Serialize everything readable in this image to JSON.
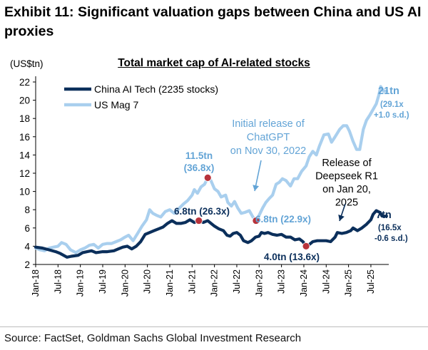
{
  "header": {
    "title": "Exhibit 11: Significant valuation gaps between China and US AI proxies"
  },
  "footer": {
    "source": "Source: FactSet, Goldman Sachs Global Investment Research"
  },
  "colors": {
    "china": "#0b2f5b",
    "us": "#a9cfee",
    "marker": "#b8333b",
    "annotation_blue": "#63a4d6"
  },
  "chart_data": {
    "type": "line",
    "title": "Total market cap of AI-related stocks",
    "unit_label": "(US$tn)",
    "ylim": [
      2,
      22
    ],
    "y_ticks": [
      2,
      4,
      6,
      8,
      10,
      12,
      14,
      16,
      18,
      20,
      22
    ],
    "x_ticks": [
      "Jan-18",
      "Jul-18",
      "Jan-19",
      "Jul-19",
      "Jan-20",
      "Jul-20",
      "Jan-21",
      "Jul-21",
      "Jan-22",
      "Jul-22",
      "Jan-23",
      "Jul-23",
      "Jan-24",
      "Jul-24",
      "Jan-25",
      "Jul-25"
    ],
    "xlim": [
      2018.0,
      2025.9
    ],
    "legend": {
      "position": "top-left",
      "entries": [
        "China AI Tech (2235 stocks)",
        "US Mag 7"
      ]
    },
    "series": [
      {
        "name": "China AI Tech (2235 stocks)",
        "points": [
          [
            2018.0,
            3.9
          ],
          [
            2018.15,
            3.8
          ],
          [
            2018.3,
            3.6
          ],
          [
            2018.45,
            3.4
          ],
          [
            2018.55,
            3.2
          ],
          [
            2018.7,
            2.8
          ],
          [
            2018.8,
            2.9
          ],
          [
            2018.95,
            3.0
          ],
          [
            2019.05,
            3.3
          ],
          [
            2019.15,
            3.4
          ],
          [
            2019.25,
            3.5
          ],
          [
            2019.35,
            3.3
          ],
          [
            2019.5,
            3.4
          ],
          [
            2019.6,
            3.4
          ],
          [
            2019.75,
            3.5
          ],
          [
            2019.85,
            3.7
          ],
          [
            2019.95,
            3.9
          ],
          [
            2020.05,
            4.0
          ],
          [
            2020.15,
            3.7
          ],
          [
            2020.25,
            4.0
          ],
          [
            2020.35,
            4.5
          ],
          [
            2020.45,
            5.3
          ],
          [
            2020.55,
            5.5
          ],
          [
            2020.65,
            5.7
          ],
          [
            2020.75,
            5.9
          ],
          [
            2020.85,
            6.1
          ],
          [
            2020.95,
            6.5
          ],
          [
            2021.05,
            6.8
          ],
          [
            2021.15,
            6.5
          ],
          [
            2021.25,
            6.5
          ],
          [
            2021.35,
            6.6
          ],
          [
            2021.45,
            6.9
          ],
          [
            2021.55,
            6.6
          ],
          [
            2021.65,
            6.8
          ],
          [
            2021.75,
            6.6
          ],
          [
            2021.85,
            6.8
          ],
          [
            2022.0,
            6.2
          ],
          [
            2022.1,
            5.9
          ],
          [
            2022.2,
            5.7
          ],
          [
            2022.28,
            5.2
          ],
          [
            2022.35,
            5.1
          ],
          [
            2022.42,
            5.4
          ],
          [
            2022.5,
            5.5
          ],
          [
            2022.58,
            5.2
          ],
          [
            2022.65,
            4.6
          ],
          [
            2022.75,
            4.4
          ],
          [
            2022.83,
            4.6
          ],
          [
            2022.92,
            5.0
          ],
          [
            2023.0,
            5.1
          ],
          [
            2023.05,
            5.5
          ],
          [
            2023.12,
            5.4
          ],
          [
            2023.2,
            5.5
          ],
          [
            2023.3,
            5.3
          ],
          [
            2023.4,
            5.2
          ],
          [
            2023.5,
            5.3
          ],
          [
            2023.6,
            5.0
          ],
          [
            2023.7,
            5.0
          ],
          [
            2023.8,
            4.7
          ],
          [
            2023.9,
            4.8
          ],
          [
            2023.98,
            4.5
          ],
          [
            2024.05,
            4.0
          ],
          [
            2024.1,
            4.1
          ],
          [
            2024.2,
            4.5
          ],
          [
            2024.3,
            4.6
          ],
          [
            2024.4,
            4.6
          ],
          [
            2024.5,
            4.6
          ],
          [
            2024.6,
            4.5
          ],
          [
            2024.7,
            5.0
          ],
          [
            2024.75,
            5.5
          ],
          [
            2024.85,
            5.4
          ],
          [
            2024.95,
            5.5
          ],
          [
            2025.05,
            5.7
          ],
          [
            2025.1,
            6.0
          ],
          [
            2025.2,
            5.7
          ],
          [
            2025.3,
            6.0
          ],
          [
            2025.4,
            6.4
          ],
          [
            2025.5,
            6.9
          ],
          [
            2025.55,
            7.5
          ],
          [
            2025.62,
            7.9
          ],
          [
            2025.7,
            7.7
          ],
          [
            2025.75,
            7.3
          ],
          [
            2025.85,
            7.3
          ]
        ]
      },
      {
        "name": "US Mag 7",
        "points": [
          [
            2018.0,
            3.8
          ],
          [
            2018.1,
            3.6
          ],
          [
            2018.2,
            3.5
          ],
          [
            2018.3,
            3.8
          ],
          [
            2018.4,
            3.9
          ],
          [
            2018.5,
            4.0
          ],
          [
            2018.58,
            4.4
          ],
          [
            2018.68,
            4.2
          ],
          [
            2018.78,
            3.6
          ],
          [
            2018.9,
            3.3
          ],
          [
            2019.0,
            3.6
          ],
          [
            2019.1,
            3.8
          ],
          [
            2019.2,
            4.1
          ],
          [
            2019.3,
            4.2
          ],
          [
            2019.4,
            3.8
          ],
          [
            2019.5,
            4.2
          ],
          [
            2019.6,
            4.3
          ],
          [
            2019.7,
            4.3
          ],
          [
            2019.8,
            4.5
          ],
          [
            2019.9,
            4.7
          ],
          [
            2020.0,
            5.0
          ],
          [
            2020.08,
            5.2
          ],
          [
            2020.18,
            4.6
          ],
          [
            2020.28,
            5.4
          ],
          [
            2020.38,
            6.2
          ],
          [
            2020.48,
            6.9
          ],
          [
            2020.55,
            8.0
          ],
          [
            2020.62,
            7.6
          ],
          [
            2020.7,
            7.4
          ],
          [
            2020.8,
            7.2
          ],
          [
            2020.9,
            7.8
          ],
          [
            2021.0,
            8.0
          ],
          [
            2021.1,
            7.6
          ],
          [
            2021.2,
            8.1
          ],
          [
            2021.3,
            8.6
          ],
          [
            2021.4,
            9.0
          ],
          [
            2021.5,
            9.6
          ],
          [
            2021.55,
            10.2
          ],
          [
            2021.62,
            9.8
          ],
          [
            2021.7,
            10.5
          ],
          [
            2021.78,
            10.8
          ],
          [
            2021.85,
            11.5
          ],
          [
            2021.92,
            11.2
          ],
          [
            2022.0,
            10.3
          ],
          [
            2022.08,
            10.0
          ],
          [
            2022.15,
            9.4
          ],
          [
            2022.25,
            9.6
          ],
          [
            2022.3,
            8.8
          ],
          [
            2022.38,
            8.4
          ],
          [
            2022.45,
            8.9
          ],
          [
            2022.52,
            8.2
          ],
          [
            2022.6,
            7.6
          ],
          [
            2022.68,
            7.7
          ],
          [
            2022.78,
            7.9
          ],
          [
            2022.86,
            7.2
          ],
          [
            2022.93,
            6.8
          ],
          [
            2023.0,
            7.4
          ],
          [
            2023.08,
            8.2
          ],
          [
            2023.15,
            8.8
          ],
          [
            2023.22,
            9.2
          ],
          [
            2023.3,
            9.6
          ],
          [
            2023.38,
            10.8
          ],
          [
            2023.45,
            11.0
          ],
          [
            2023.52,
            11.4
          ],
          [
            2023.6,
            11.2
          ],
          [
            2023.7,
            10.6
          ],
          [
            2023.78,
            11.4
          ],
          [
            2023.86,
            11.4
          ],
          [
            2023.95,
            12.2
          ],
          [
            2024.05,
            12.8
          ],
          [
            2024.12,
            13.8
          ],
          [
            2024.2,
            14.4
          ],
          [
            2024.28,
            14.0
          ],
          [
            2024.35,
            15.0
          ],
          [
            2024.45,
            16.2
          ],
          [
            2024.55,
            16.3
          ],
          [
            2024.62,
            15.4
          ],
          [
            2024.7,
            16.0
          ],
          [
            2024.8,
            16.8
          ],
          [
            2024.88,
            17.2
          ],
          [
            2024.96,
            17.2
          ],
          [
            2025.02,
            16.6
          ],
          [
            2025.1,
            15.5
          ],
          [
            2025.18,
            14.6
          ],
          [
            2025.25,
            14.6
          ],
          [
            2025.33,
            16.8
          ],
          [
            2025.4,
            17.8
          ],
          [
            2025.48,
            18.4
          ],
          [
            2025.55,
            19.0
          ],
          [
            2025.62,
            19.6
          ],
          [
            2025.68,
            20.6
          ],
          [
            2025.72,
            21.5
          ],
          [
            2025.78,
            21.0
          ],
          [
            2025.85,
            21.0
          ]
        ]
      }
    ],
    "markers": [
      {
        "x": 2021.85,
        "y": 11.5
      },
      {
        "x": 2021.65,
        "y": 6.8
      },
      {
        "x": 2022.93,
        "y": 6.8
      },
      {
        "x": 2024.05,
        "y": 4.0
      }
    ],
    "annotations": {
      "us_peak": [
        "11.5tn",
        "(36.8x)"
      ],
      "china_peak": [
        "6.8tn (26.3x)"
      ],
      "us_trough": [
        "6.8tn (22.9x)"
      ],
      "china_trough": [
        "4.0tn (13.6x)"
      ],
      "chatgpt": [
        "Initial release of",
        "ChatGPT",
        "on Nov 30, 2022"
      ],
      "deepseek": [
        "Release of",
        "Deepseek R1",
        "on Jan 20,",
        "2025"
      ],
      "us_end": [
        "21tn",
        "(29.1x",
        "+1.0 s.d.)"
      ],
      "china_end": [
        "7tn",
        "(16.5x",
        "-0.6 s.d.)"
      ]
    }
  }
}
